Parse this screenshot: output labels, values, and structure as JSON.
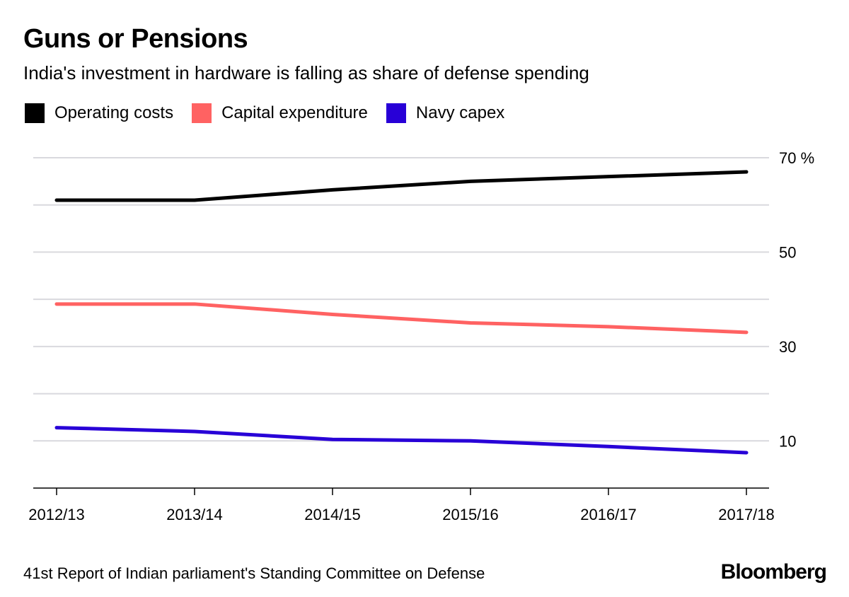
{
  "title": "Guns or Pensions",
  "subtitle": "India's investment in hardware is falling as share of defense spending",
  "legend": [
    {
      "label": "Operating costs",
      "color": "#000000"
    },
    {
      "label": "Capital expenditure",
      "color": "#ff6262"
    },
    {
      "label": "Navy capex",
      "color": "#2800d7"
    }
  ],
  "source": "41st Report of Indian parliament's Standing Committee on Defense",
  "brand": "Bloomberg",
  "chart_data": {
    "type": "line",
    "title": "Guns or Pensions",
    "subtitle": "India's investment in hardware is falling as share of defense spending",
    "xlabel": "",
    "ylabel": "%",
    "categories": [
      "2012/13",
      "2013/14",
      "2014/15",
      "2015/16",
      "2016/17",
      "2017/18"
    ],
    "ylim": [
      0,
      70
    ],
    "yticks": [
      0,
      10,
      20,
      30,
      40,
      50,
      60,
      70
    ],
    "ytick_labels": [
      {
        "value": 10,
        "label": "10"
      },
      {
        "value": 30,
        "label": "30"
      },
      {
        "value": 50,
        "label": "50"
      },
      {
        "value": 70,
        "label": "70 %"
      }
    ],
    "grid": true,
    "legend_position": "top-left",
    "series": [
      {
        "name": "Operating costs",
        "color": "#000000",
        "values": [
          61,
          61,
          63.2,
          65,
          66,
          67
        ]
      },
      {
        "name": "Capital expenditure",
        "color": "#ff6262",
        "values": [
          39,
          39,
          36.8,
          35,
          34.2,
          33
        ]
      },
      {
        "name": "Navy capex",
        "color": "#2800d7",
        "values": [
          12.8,
          12,
          10.3,
          10,
          8.8,
          7.5
        ]
      }
    ]
  }
}
